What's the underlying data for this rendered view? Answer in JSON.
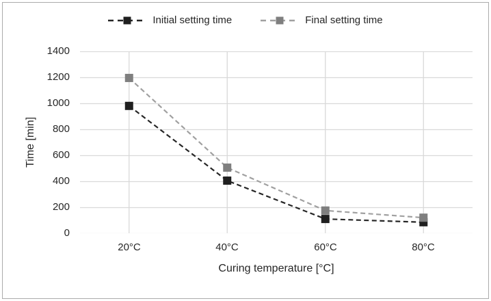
{
  "chart_data": {
    "type": "line",
    "title": "",
    "categories": [
      "20°C",
      "40°C",
      "60°C",
      "80°C"
    ],
    "series": [
      {
        "name": "Initial setting time",
        "values": [
          980,
          405,
          110,
          85
        ],
        "line_color": "#262626",
        "marker_color": "#1f1f1f",
        "line_style": "dashed",
        "marker": "square"
      },
      {
        "name": "Final setting time",
        "values": [
          1195,
          505,
          175,
          120
        ],
        "line_color": "#a0a0a0",
        "marker_color": "#7f7f7f",
        "line_style": "dashed",
        "marker": "square"
      }
    ],
    "xlabel": "Curing temperature [°C]",
    "ylabel": "Time [min]",
    "ylim": [
      0,
      1400
    ],
    "ytick_step": 200,
    "ytick_labels": [
      "0",
      "200",
      "400",
      "600",
      "800",
      "1000",
      "1200",
      "1400"
    ],
    "grid": {
      "horizontal": true,
      "vertical": true,
      "color": "#d9d9d9"
    },
    "legend_position": "top",
    "frame_border_color": "#ababab"
  }
}
